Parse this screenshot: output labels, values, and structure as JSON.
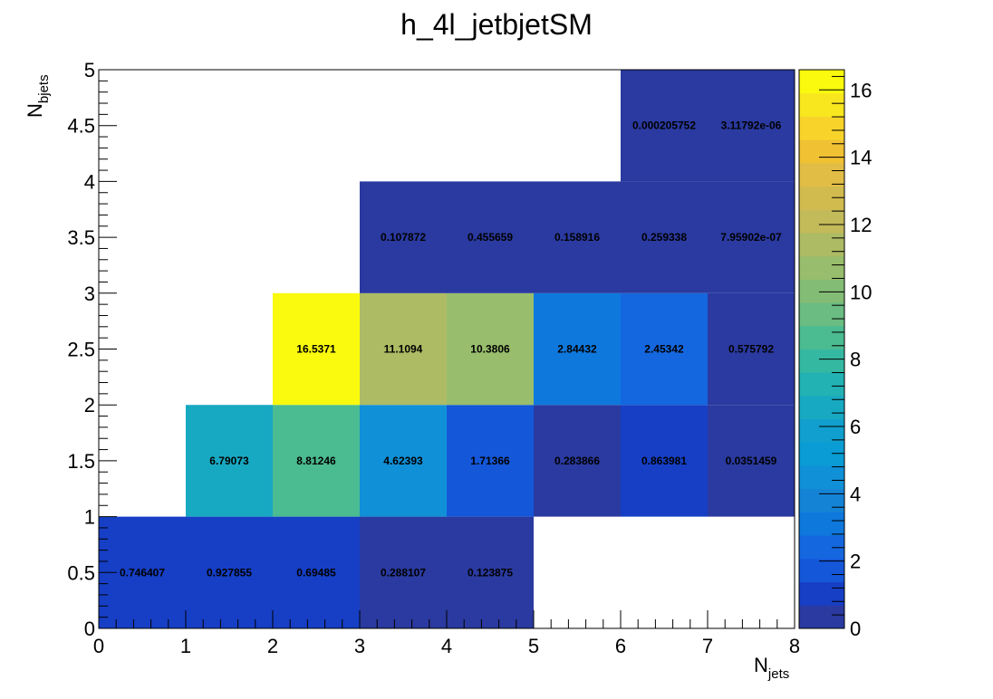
{
  "chart_data": {
    "type": "heatmap",
    "title": "h_4l_jetbjetSM",
    "xlabel": {
      "main": "N",
      "sub": "jets"
    },
    "ylabel": {
      "main": "N",
      "sub": "bjets"
    },
    "xlim": [
      0,
      8
    ],
    "ylim": [
      0,
      5
    ],
    "x_bin_edges": [
      0,
      1,
      2,
      3,
      4,
      5,
      6,
      7,
      8
    ],
    "y_bin_edges": [
      0,
      1,
      2,
      3,
      4,
      5
    ],
    "x_ticks": [
      "0",
      "1",
      "2",
      "3",
      "4",
      "5",
      "6",
      "7",
      "8"
    ],
    "y_ticks": [
      "0",
      "0.5",
      "1",
      "1.5",
      "2",
      "2.5",
      "3",
      "3.5",
      "4",
      "4.5",
      "5"
    ],
    "z_ticks": [
      "0",
      "2",
      "4",
      "6",
      "8",
      "10",
      "12",
      "14",
      "16"
    ],
    "zlim": [
      0,
      16.6
    ],
    "palette": [
      "#2a3aa0",
      "#163fc6",
      "#1557d9",
      "#1567df",
      "#0e78dd",
      "#1483d6",
      "#1090d7",
      "#0a9cd4",
      "#109fce",
      "#18a9c2",
      "#22b2b4",
      "#35b8a2",
      "#4bbb91",
      "#6abc82",
      "#83bd75",
      "#98bd6c",
      "#adbb64",
      "#c3ba5a",
      "#d2bb4e",
      "#e2bd46",
      "#f0c132",
      "#f8d42b",
      "#f8e61f",
      "#f9fa0e"
    ],
    "cells": [
      {
        "x": 0.5,
        "y": 0.5,
        "value": 0.746407,
        "label": "0.746407"
      },
      {
        "x": 1.5,
        "y": 0.5,
        "value": 0.927855,
        "label": "0.927855"
      },
      {
        "x": 2.5,
        "y": 0.5,
        "value": 0.69485,
        "label": "0.69485"
      },
      {
        "x": 3.5,
        "y": 0.5,
        "value": 0.288107,
        "label": "0.288107"
      },
      {
        "x": 4.5,
        "y": 0.5,
        "value": 0.123875,
        "label": "0.123875"
      },
      {
        "x": 1.5,
        "y": 1.5,
        "value": 6.79073,
        "label": "6.79073"
      },
      {
        "x": 2.5,
        "y": 1.5,
        "value": 8.81246,
        "label": "8.81246"
      },
      {
        "x": 3.5,
        "y": 1.5,
        "value": 4.62393,
        "label": "4.62393"
      },
      {
        "x": 4.5,
        "y": 1.5,
        "value": 1.71366,
        "label": "1.71366"
      },
      {
        "x": 5.5,
        "y": 1.5,
        "value": 0.283866,
        "label": "0.283866"
      },
      {
        "x": 6.5,
        "y": 1.5,
        "value": 0.863981,
        "label": "0.863981"
      },
      {
        "x": 7.5,
        "y": 1.5,
        "value": 0.0351459,
        "label": "0.0351459"
      },
      {
        "x": 2.5,
        "y": 2.5,
        "value": 16.5371,
        "label": "16.5371"
      },
      {
        "x": 3.5,
        "y": 2.5,
        "value": 11.1094,
        "label": "11.1094"
      },
      {
        "x": 4.5,
        "y": 2.5,
        "value": 10.3806,
        "label": "10.3806"
      },
      {
        "x": 5.5,
        "y": 2.5,
        "value": 2.84432,
        "label": "2.84432"
      },
      {
        "x": 6.5,
        "y": 2.5,
        "value": 2.45342,
        "label": "2.45342"
      },
      {
        "x": 7.5,
        "y": 2.5,
        "value": 0.575792,
        "label": "0.575792"
      },
      {
        "x": 3.5,
        "y": 3.5,
        "value": 0.107872,
        "label": "0.107872"
      },
      {
        "x": 4.5,
        "y": 3.5,
        "value": 0.455659,
        "label": "0.455659"
      },
      {
        "x": 5.5,
        "y": 3.5,
        "value": 0.158916,
        "label": "0.158916"
      },
      {
        "x": 6.5,
        "y": 3.5,
        "value": 0.259338,
        "label": "0.259338"
      },
      {
        "x": 7.5,
        "y": 3.5,
        "value": 7.95902e-07,
        "label": "7.95902e-07"
      },
      {
        "x": 6.5,
        "y": 4.5,
        "value": 0.000205752,
        "label": "0.000205752"
      },
      {
        "x": 7.5,
        "y": 4.5,
        "value": 3.11792e-06,
        "label": "3.11792e-06"
      }
    ]
  }
}
